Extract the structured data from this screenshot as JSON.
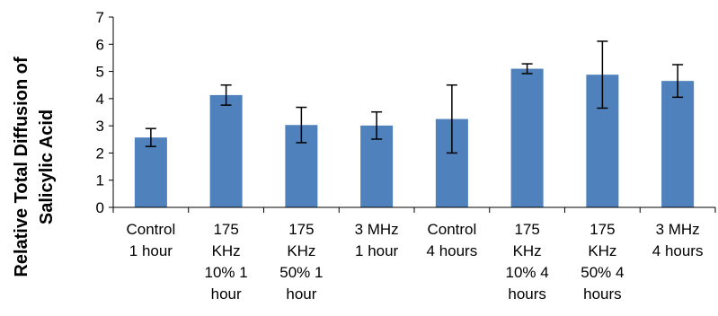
{
  "chart_data": {
    "type": "bar",
    "ylabel_lines": [
      "Relative Total Diffusion of",
      "Salicylic Acid"
    ],
    "ylim": [
      0,
      7
    ],
    "yticks": [
      0,
      1,
      2,
      3,
      4,
      5,
      6,
      7
    ],
    "grid": false,
    "bar_color": "#4f81bd",
    "categories": [
      [
        "Control",
        "1 hour"
      ],
      [
        "175",
        "KHz",
        "10% 1",
        "hour"
      ],
      [
        "175",
        "KHz",
        "50% 1",
        "hour"
      ],
      [
        "3 MHz",
        "1 hour"
      ],
      [
        "Control",
        "4 hours"
      ],
      [
        "175",
        "KHz",
        "10% 4",
        "hours"
      ],
      [
        "175",
        "KHz",
        "50% 4",
        "hours"
      ],
      [
        "3 MHz",
        "4 hours"
      ]
    ],
    "values": [
      2.57,
      4.13,
      3.03,
      3.01,
      3.25,
      5.1,
      4.88,
      4.65
    ],
    "error": [
      0.33,
      0.37,
      0.65,
      0.5,
      1.25,
      0.18,
      1.23,
      0.6
    ]
  }
}
